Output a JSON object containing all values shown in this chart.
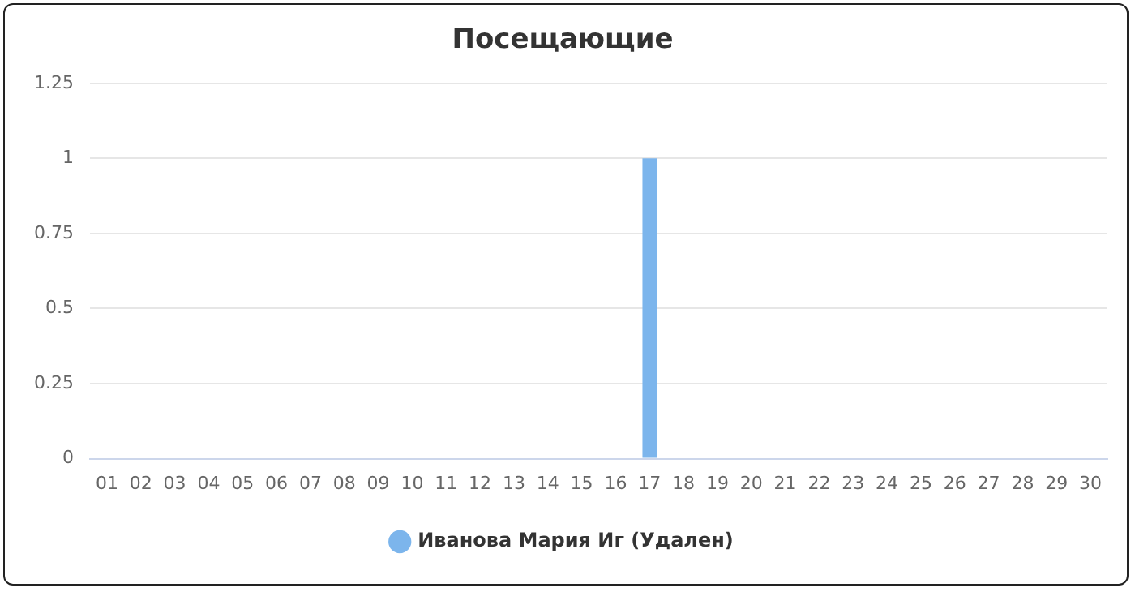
{
  "chart_data": {
    "type": "bar",
    "title": "Посещающие",
    "categories": [
      "01",
      "02",
      "03",
      "04",
      "05",
      "06",
      "07",
      "08",
      "09",
      "10",
      "11",
      "12",
      "13",
      "14",
      "15",
      "16",
      "17",
      "18",
      "19",
      "20",
      "21",
      "22",
      "23",
      "24",
      "25",
      "26",
      "27",
      "28",
      "29",
      "30"
    ],
    "series": [
      {
        "name": "Иванова Мария Иг (Удален)",
        "color": "#7cb5ec",
        "values": [
          0,
          0,
          0,
          0,
          0,
          0,
          0,
          0,
          0,
          0,
          0,
          0,
          0,
          0,
          0,
          0,
          1,
          0,
          0,
          0,
          0,
          0,
          0,
          0,
          0,
          0,
          0,
          0,
          0,
          0
        ]
      }
    ],
    "ylim": [
      0,
      1.25
    ],
    "yticks": [
      0,
      0.25,
      0.5,
      0.75,
      1,
      1.25
    ],
    "grid": "y",
    "legend": "bottom"
  }
}
